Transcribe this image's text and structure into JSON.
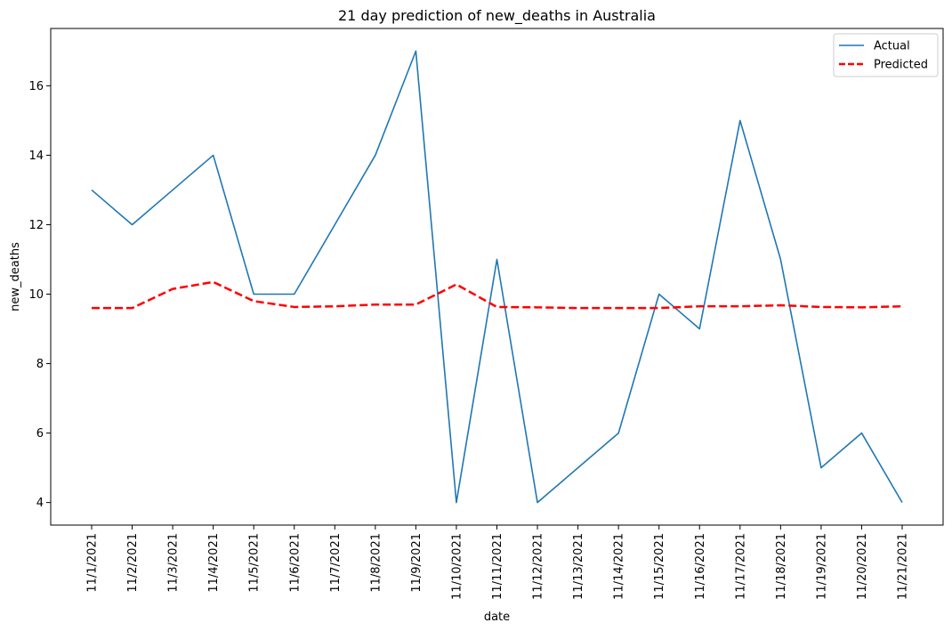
{
  "chart_data": {
    "type": "line",
    "title": "21 day prediction of new_deaths in Australia",
    "xlabel": "date",
    "ylabel": "new_deaths",
    "categories": [
      "11/1/2021",
      "11/2/2021",
      "11/3/2021",
      "11/4/2021",
      "11/5/2021",
      "11/6/2021",
      "11/7/2021",
      "11/8/2021",
      "11/9/2021",
      "11/10/2021",
      "11/11/2021",
      "11/12/2021",
      "11/13/2021",
      "11/14/2021",
      "11/15/2021",
      "11/16/2021",
      "11/17/2021",
      "11/18/2021",
      "11/19/2021",
      "11/20/2021",
      "11/21/2021"
    ],
    "yticks": [
      4,
      6,
      8,
      10,
      12,
      14,
      16
    ],
    "ylim": [
      3.35,
      17.65
    ],
    "grid": false,
    "legend_position": "top-right",
    "series": [
      {
        "name": "Actual",
        "style": "solid",
        "color": "#1f77b4",
        "values": [
          13,
          12,
          13,
          14,
          10,
          10,
          12,
          14,
          17,
          4,
          11,
          4,
          5,
          6,
          10,
          9,
          15,
          11,
          5,
          6,
          4
        ]
      },
      {
        "name": "Predicted",
        "style": "dashed",
        "color": "#ff0000",
        "values": [
          9.6,
          9.6,
          10.15,
          10.35,
          9.8,
          9.63,
          9.65,
          9.7,
          9.7,
          10.28,
          9.63,
          9.62,
          9.6,
          9.6,
          9.6,
          9.65,
          9.65,
          9.68,
          9.63,
          9.62,
          9.65
        ]
      }
    ]
  }
}
